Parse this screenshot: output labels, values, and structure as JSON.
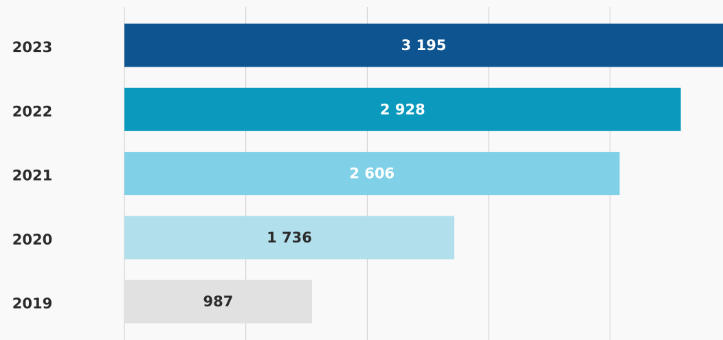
{
  "chart_data": {
    "type": "hbar",
    "categories": [
      "2023",
      "2022",
      "2021",
      "2020",
      "2019"
    ],
    "values": [
      3195,
      2928,
      2606,
      1736,
      987
    ],
    "value_labels": [
      "3 195",
      "2 928",
      "2 606",
      "1 736",
      "987"
    ],
    "colors": [
      "#0e5490",
      "#0b9abd",
      "#80d1e8",
      "#b2dfec",
      "#e1e1e1"
    ],
    "value_label_colors": [
      "#ffffff",
      "#ffffff",
      "#ffffff",
      "#2b2b2b",
      "#2b2b2b"
    ],
    "xlim": [
      0,
      3150
    ],
    "xticks": [
      0,
      639,
      1278,
      1917,
      2556
    ],
    "grid": true
  }
}
